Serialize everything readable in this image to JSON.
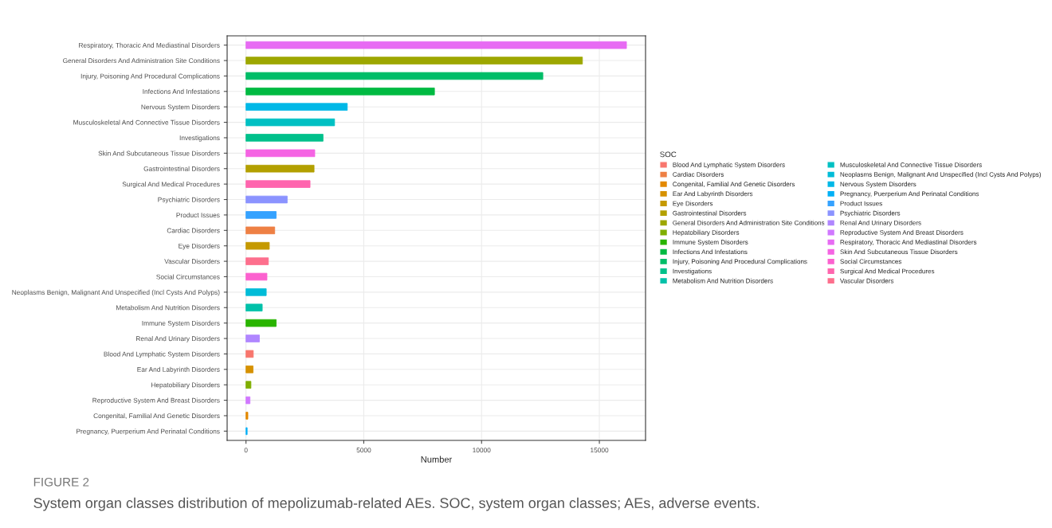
{
  "chart_data": {
    "type": "bar",
    "orientation": "horizontal",
    "categories": [
      "Respiratory, Thoracic And Mediastinal Disorders",
      "General Disorders And Administration Site Conditions",
      "Injury, Poisoning And Procedural Complications",
      "Infections And Infestations",
      "Nervous System Disorders",
      "Musculoskeletal And Connective Tissue Disorders",
      "Investigations",
      "Skin And Subcutaneous Tissue Disorders",
      "Gastrointestinal Disorders",
      "Surgical And Medical Procedures",
      "Psychiatric Disorders",
      "Product Issues",
      "Cardiac Disorders",
      "Eye Disorders",
      "Vascular Disorders",
      "Social Circumstances",
      "Neoplasms Benign, Malignant And Unspecified (Incl Cysts And Polyps)",
      "Metabolism And Nutrition Disorders",
      "Immune System Disorders",
      "Renal And Urinary Disorders",
      "Blood And Lymphatic System Disorders",
      "Ear And Labyrinth Disorders",
      "Hepatobiliary Disorders",
      "Reproductive System And Breast Disorders",
      "Congenital, Familial And Genetic Disorders",
      "Pregnancy, Puerperium And Perinatal Conditions"
    ],
    "series": [
      {
        "name": "Blood And Lymphatic System Disorders",
        "color": "#f8766d",
        "values": [
          null,
          null,
          null,
          null,
          null,
          null,
          null,
          null,
          null,
          null,
          null,
          null,
          null,
          null,
          null,
          null,
          null,
          null,
          null,
          null,
          310,
          null,
          null,
          null,
          null,
          null
        ]
      },
      {
        "name": "Cardiac Disorders",
        "color": "#ee8044",
        "values": [
          null,
          null,
          null,
          null,
          null,
          null,
          null,
          null,
          null,
          null,
          null,
          null,
          1220,
          null,
          null,
          null,
          null,
          null,
          null,
          null,
          null,
          null,
          null,
          null,
          null,
          null
        ]
      },
      {
        "name": "Congenital, Familial And Genetic Disorders",
        "color": "#e38900",
        "values": [
          null,
          null,
          null,
          null,
          null,
          null,
          null,
          null,
          null,
          null,
          null,
          null,
          null,
          null,
          null,
          null,
          null,
          null,
          null,
          null,
          null,
          null,
          null,
          null,
          80,
          null
        ]
      },
      {
        "name": "Ear And Labyrinth Disorders",
        "color": "#d69100",
        "values": [
          null,
          null,
          null,
          null,
          null,
          null,
          null,
          null,
          null,
          null,
          null,
          null,
          null,
          null,
          null,
          null,
          null,
          null,
          null,
          null,
          null,
          300,
          null,
          null,
          null,
          null
        ]
      },
      {
        "name": "Eye Disorders",
        "color": "#c59900",
        "values": [
          null,
          null,
          null,
          null,
          null,
          null,
          null,
          null,
          null,
          null,
          null,
          null,
          null,
          990,
          null,
          null,
          null,
          null,
          null,
          null,
          null,
          null,
          null,
          null,
          null,
          null
        ]
      },
      {
        "name": "Gastrointestinal Disorders",
        "color": "#b3a000",
        "values": [
          null,
          null,
          null,
          null,
          null,
          null,
          null,
          null,
          2890,
          null,
          null,
          null,
          null,
          null,
          null,
          null,
          null,
          null,
          null,
          null,
          null,
          null,
          null,
          null,
          null,
          null
        ]
      },
      {
        "name": "General Disorders And Administration Site Conditions",
        "color": "#9da700",
        "values": [
          null,
          14280,
          null,
          null,
          null,
          null,
          null,
          null,
          null,
          null,
          null,
          null,
          null,
          null,
          null,
          null,
          null,
          null,
          null,
          null,
          null,
          null,
          null,
          null,
          null,
          null
        ]
      },
      {
        "name": "Hepatobiliary Disorders",
        "color": "#7fae00",
        "values": [
          null,
          null,
          null,
          null,
          null,
          null,
          null,
          null,
          null,
          null,
          null,
          null,
          null,
          null,
          null,
          null,
          null,
          null,
          null,
          null,
          null,
          null,
          210,
          null,
          null,
          null
        ]
      },
      {
        "name": "Immune System Disorders",
        "color": "#29b400",
        "values": [
          null,
          null,
          null,
          null,
          null,
          null,
          null,
          null,
          null,
          null,
          null,
          null,
          null,
          null,
          null,
          null,
          null,
          null,
          1280,
          null,
          null,
          null,
          null,
          null,
          null,
          null
        ]
      },
      {
        "name": "Infections And Infestations",
        "color": "#00ba42",
        "values": [
          null,
          null,
          null,
          8000,
          null,
          null,
          null,
          null,
          null,
          null,
          null,
          null,
          null,
          null,
          null,
          null,
          null,
          null,
          null,
          null,
          null,
          null,
          null,
          null,
          null,
          null
        ]
      },
      {
        "name": "Injury, Poisoning And Procedural Complications",
        "color": "#00bd68",
        "values": [
          null,
          null,
          12600,
          null,
          null,
          null,
          null,
          null,
          null,
          null,
          null,
          null,
          null,
          null,
          null,
          null,
          null,
          null,
          null,
          null,
          null,
          null,
          null,
          null,
          null,
          null
        ]
      },
      {
        "name": "Investigations",
        "color": "#00c08b",
        "values": [
          null,
          null,
          null,
          null,
          null,
          null,
          3270,
          null,
          null,
          null,
          null,
          null,
          null,
          null,
          null,
          null,
          null,
          null,
          null,
          null,
          null,
          null,
          null,
          null,
          null,
          null
        ]
      },
      {
        "name": "Metabolism And Nutrition Disorders",
        "color": "#00c1a9",
        "values": [
          null,
          null,
          null,
          null,
          null,
          null,
          null,
          null,
          null,
          null,
          null,
          null,
          null,
          null,
          null,
          null,
          null,
          690,
          null,
          null,
          null,
          null,
          null,
          null,
          null,
          null
        ]
      },
      {
        "name": "Musculoskeletal And Connective Tissue Disorders",
        "color": "#00c0c3",
        "values": [
          null,
          null,
          null,
          null,
          null,
          3760,
          null,
          null,
          null,
          null,
          null,
          null,
          null,
          null,
          null,
          null,
          null,
          null,
          null,
          null,
          null,
          null,
          null,
          null,
          null,
          null
        ]
      },
      {
        "name": "Neoplasms Benign, Malignant And Unspecified (Incl Cysts And Polyps)",
        "color": "#00bcd8",
        "values": [
          null,
          null,
          null,
          null,
          null,
          null,
          null,
          null,
          null,
          null,
          null,
          null,
          null,
          null,
          null,
          null,
          860,
          null,
          null,
          null,
          null,
          null,
          null,
          null,
          null,
          null
        ]
      },
      {
        "name": "Nervous System Disorders",
        "color": "#00b8e7",
        "values": [
          null,
          null,
          null,
          null,
          4300,
          null,
          null,
          null,
          null,
          null,
          null,
          null,
          null,
          null,
          null,
          null,
          null,
          null,
          null,
          null,
          null,
          null,
          null,
          null,
          null,
          null
        ]
      },
      {
        "name": "Pregnancy, Puerperium And Perinatal Conditions",
        "color": "#00b0f6",
        "values": [
          null,
          null,
          null,
          null,
          null,
          null,
          null,
          null,
          null,
          null,
          null,
          null,
          null,
          null,
          null,
          null,
          null,
          null,
          null,
          null,
          null,
          null,
          null,
          null,
          null,
          50
        ]
      },
      {
        "name": "Product Issues",
        "color": "#35a2ff",
        "values": [
          null,
          null,
          null,
          null,
          null,
          null,
          null,
          null,
          null,
          null,
          null,
          1280,
          null,
          null,
          null,
          null,
          null,
          null,
          null,
          null,
          null,
          null,
          null,
          null,
          null,
          null
        ]
      },
      {
        "name": "Psychiatric Disorders",
        "color": "#8b93ff",
        "values": [
          null,
          null,
          null,
          null,
          null,
          null,
          null,
          null,
          null,
          null,
          1750,
          null,
          null,
          null,
          null,
          null,
          null,
          null,
          null,
          null,
          null,
          null,
          null,
          null,
          null,
          null
        ]
      },
      {
        "name": "Renal And Urinary Disorders",
        "color": "#b086ff",
        "values": [
          null,
          null,
          null,
          null,
          null,
          null,
          null,
          null,
          null,
          null,
          null,
          null,
          null,
          null,
          null,
          null,
          null,
          null,
          null,
          570,
          null,
          null,
          null,
          null,
          null,
          null
        ]
      },
      {
        "name": "Reproductive System And Breast Disorders",
        "color": "#d078ff",
        "values": [
          null,
          null,
          null,
          null,
          null,
          null,
          null,
          null,
          null,
          null,
          null,
          null,
          null,
          null,
          null,
          null,
          null,
          null,
          null,
          null,
          null,
          null,
          null,
          170,
          null,
          null
        ]
      },
      {
        "name": "Respiratory, Thoracic And Mediastinal Disorders",
        "color": "#e76bf3",
        "values": [
          16150,
          null,
          null,
          null,
          null,
          null,
          null,
          null,
          null,
          null,
          null,
          null,
          null,
          null,
          null,
          null,
          null,
          null,
          null,
          null,
          null,
          null,
          null,
          null,
          null,
          null
        ]
      },
      {
        "name": "Skin And Subcutaneous Tissue Disorders",
        "color": "#f564e3",
        "values": [
          null,
          null,
          null,
          null,
          null,
          null,
          null,
          2920,
          null,
          null,
          null,
          null,
          null,
          null,
          null,
          null,
          null,
          null,
          null,
          null,
          null,
          null,
          null,
          null,
          null,
          null
        ]
      },
      {
        "name": "Social Circumstances",
        "color": "#fc61cf",
        "values": [
          null,
          null,
          null,
          null,
          null,
          null,
          null,
          null,
          null,
          null,
          null,
          null,
          null,
          null,
          null,
          890,
          null,
          null,
          null,
          null,
          null,
          null,
          null,
          null,
          null,
          null
        ]
      },
      {
        "name": "Surgical And Medical Procedures",
        "color": "#ff65ae",
        "values": [
          null,
          null,
          null,
          null,
          null,
          null,
          null,
          null,
          null,
          2720,
          null,
          null,
          null,
          null,
          null,
          null,
          null,
          null,
          null,
          null,
          null,
          null,
          null,
          null,
          null,
          null
        ]
      },
      {
        "name": "Vascular Disorders",
        "color": "#fd6f8d",
        "values": [
          null,
          null,
          null,
          null,
          null,
          null,
          null,
          null,
          null,
          null,
          null,
          null,
          null,
          null,
          950,
          null,
          null,
          null,
          null,
          null,
          null,
          null,
          null,
          null,
          null,
          null
        ]
      }
    ],
    "xlabel": "Number",
    "legend_title": "SOC",
    "legend": "right",
    "xlim": [
      -800,
      16960
    ],
    "xticks": [
      0,
      5000,
      10000,
      15000
    ],
    "grid": true,
    "annotations": [
      "FIGURE 2",
      "System organ classes distribution of mepolizumab-related AEs. SOC, system organ classes; AEs, adverse events."
    ]
  }
}
